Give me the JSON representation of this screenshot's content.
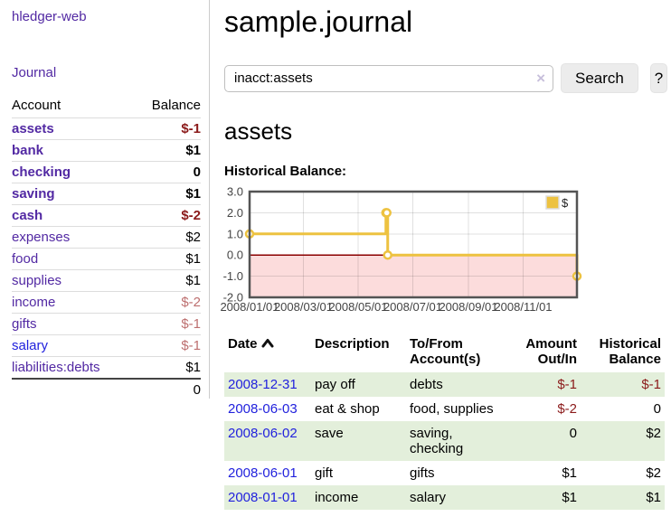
{
  "app": {
    "brand": "hledger-web",
    "nav_journal": "Journal"
  },
  "sidebar": {
    "header": {
      "account": "Account",
      "balance": "Balance"
    },
    "accounts": [
      {
        "name": "assets",
        "indent": 0,
        "balance": "$-1",
        "bold": true,
        "balance_style": "neg-strong",
        "link_style": "purple"
      },
      {
        "name": "bank",
        "indent": 1,
        "balance": "$1",
        "bold": true,
        "balance_style": "",
        "link_style": "purple"
      },
      {
        "name": "checking",
        "indent": 2,
        "balance": "0",
        "bold": true,
        "balance_style": "",
        "link_style": "purple"
      },
      {
        "name": "saving",
        "indent": 2,
        "balance": "$1",
        "bold": true,
        "balance_style": "",
        "link_style": "purple"
      },
      {
        "name": "cash",
        "indent": 1,
        "balance": "$-2",
        "bold": true,
        "balance_style": "neg-strong",
        "link_style": "purple"
      },
      {
        "name": "expenses",
        "indent": 0,
        "balance": "$2",
        "bold": false,
        "balance_style": "",
        "link_style": "purple"
      },
      {
        "name": "food",
        "indent": 1,
        "balance": "$1",
        "bold": false,
        "balance_style": "",
        "link_style": "purple"
      },
      {
        "name": "supplies",
        "indent": 1,
        "balance": "$1",
        "bold": false,
        "balance_style": "",
        "link_style": "purple"
      },
      {
        "name": "income",
        "indent": 0,
        "balance": "$-2",
        "bold": false,
        "balance_style": "neg-dim",
        "link_style": "purple"
      },
      {
        "name": "gifts",
        "indent": 1,
        "balance": "$-1",
        "bold": false,
        "balance_style": "neg-dim",
        "link_style": "purple"
      },
      {
        "name": "salary",
        "indent": 1,
        "balance": "$-1",
        "bold": false,
        "balance_style": "neg-dim",
        "link_style": "blue"
      },
      {
        "name": "liabilities:debts",
        "indent": 0,
        "balance": "$1",
        "bold": false,
        "balance_style": "",
        "link_style": "purple"
      }
    ],
    "total": "0"
  },
  "header": {
    "title": "sample.journal"
  },
  "search": {
    "value": "inacct:assets",
    "clear_icon": "×",
    "button_label": "Search",
    "help_label": "?"
  },
  "account_page": {
    "heading": "assets",
    "chart_label": "Historical Balance:"
  },
  "chart_data": {
    "type": "line",
    "title": "Historical Balance:",
    "series": [
      {
        "name": "$",
        "color": "#EDC240",
        "steps": true,
        "points": [
          [
            "2008-01-01",
            1
          ],
          [
            "2008-06-01",
            2
          ],
          [
            "2008-06-02",
            2
          ],
          [
            "2008-06-03",
            0
          ],
          [
            "2008-12-31",
            -1
          ]
        ]
      }
    ],
    "x_range": [
      "2008-01-01",
      "2008-12-31"
    ],
    "x_ticks": [
      "2008/01/01",
      "2008/03/01",
      "2008/05/01",
      "2008/07/01",
      "2008/09/01",
      "2008/11/01"
    ],
    "y_ticks": [
      "3.0",
      "2.0",
      "1.0",
      "0.0",
      "-1.0",
      "-2.0"
    ],
    "ylim": [
      -2,
      3
    ],
    "grid": true,
    "zero_line_color": "#8b0000",
    "negative_region_color": "#fcdcdc",
    "border_color": "#545454",
    "legend": {
      "label": "$",
      "position": "top-right"
    }
  },
  "register": {
    "columns": {
      "date": "Date",
      "description": "Description",
      "accounts": "To/From Account(s)",
      "amount": "Amount Out/In",
      "balance": "Historical Balance"
    },
    "rows": [
      {
        "date": "2008-12-31",
        "description": "pay off",
        "accounts": "debts",
        "amount": "$-1",
        "amount_negative": true,
        "balance": "$-1",
        "balance_negative": true
      },
      {
        "date": "2008-06-03",
        "description": "eat & shop",
        "accounts": "food, supplies",
        "amount": "$-2",
        "amount_negative": true,
        "balance": "0",
        "balance_negative": false
      },
      {
        "date": "2008-06-02",
        "description": "save",
        "accounts": "saving,\nchecking",
        "amount": "0",
        "amount_negative": false,
        "balance": "$2",
        "balance_negative": false
      },
      {
        "date": "2008-06-01",
        "description": "gift",
        "accounts": "gifts",
        "amount": "$1",
        "amount_negative": false,
        "balance": "$2",
        "balance_negative": false
      },
      {
        "date": "2008-01-01",
        "description": "income",
        "accounts": "salary",
        "amount": "$1",
        "amount_negative": false,
        "balance": "$1",
        "balance_negative": false
      }
    ]
  }
}
